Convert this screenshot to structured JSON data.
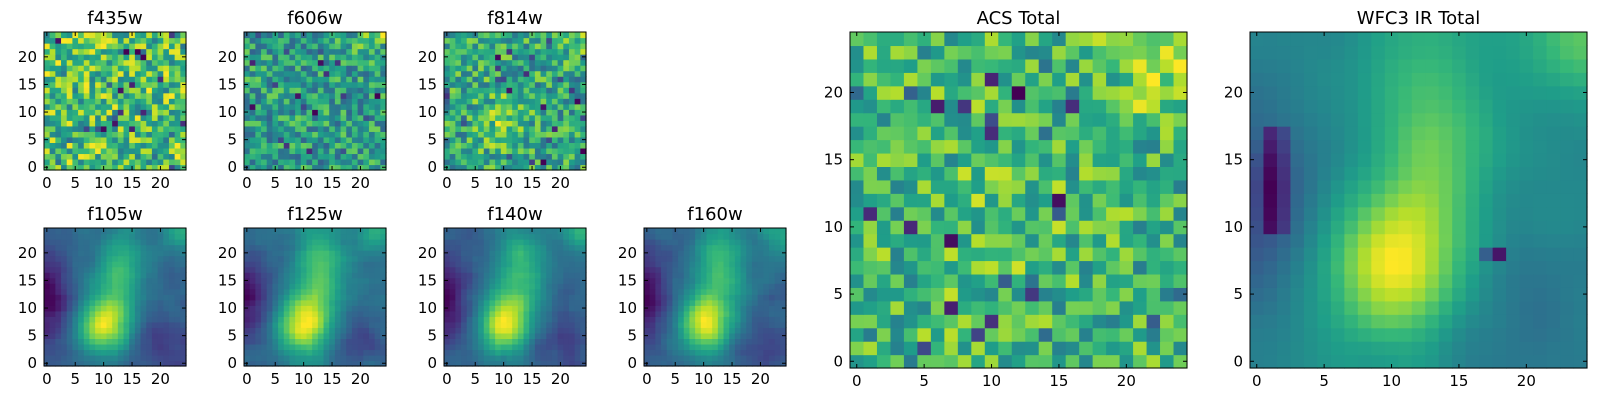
{
  "figure": {
    "layout": "mosaic",
    "colormap": "viridis",
    "colors": {
      "colormap_stops": [
        "#440154",
        "#482878",
        "#3e4989",
        "#31688e",
        "#26828e",
        "#1f9e89",
        "#35b779",
        "#6ece58",
        "#b5de2b",
        "#fde725"
      ]
    }
  },
  "chart_data": [
    {
      "type": "heatmap",
      "title": "f435w",
      "xlabel": "",
      "ylabel": "",
      "xlim": [
        -0.5,
        24.5
      ],
      "ylim": [
        -0.5,
        24.5
      ],
      "xticks": [
        0,
        5,
        10,
        15,
        20
      ],
      "yticks": [
        0,
        5,
        10,
        15,
        20
      ],
      "xtick_labels": [
        "0",
        "5",
        "10",
        "15",
        "20"
      ],
      "ytick_labels": [
        "0",
        "5",
        "10",
        "15",
        "20"
      ],
      "grid": false,
      "legend": "none",
      "pattern": "noise",
      "seed": 11
    },
    {
      "type": "heatmap",
      "title": "f606w",
      "xlabel": "",
      "ylabel": "",
      "xlim": [
        -0.5,
        24.5
      ],
      "ylim": [
        -0.5,
        24.5
      ],
      "xticks": [
        0,
        5,
        10,
        15,
        20
      ],
      "yticks": [
        0,
        5,
        10,
        15,
        20
      ],
      "xtick_labels": [
        "0",
        "5",
        "10",
        "15",
        "20"
      ],
      "ytick_labels": [
        "0",
        "5",
        "10",
        "15",
        "20"
      ],
      "grid": false,
      "legend": "none",
      "pattern": "noise-corner",
      "seed": 23
    },
    {
      "type": "heatmap",
      "title": "f814w",
      "xlabel": "",
      "ylabel": "",
      "xlim": [
        -0.5,
        24.5
      ],
      "ylim": [
        -0.5,
        24.5
      ],
      "xticks": [
        0,
        5,
        10,
        15,
        20
      ],
      "yticks": [
        0,
        5,
        10,
        15,
        20
      ],
      "xtick_labels": [
        "0",
        "5",
        "10",
        "15",
        "20"
      ],
      "ytick_labels": [
        "0",
        "5",
        "10",
        "15",
        "20"
      ],
      "grid": false,
      "legend": "none",
      "pattern": "noise-blob",
      "seed": 37
    },
    {
      "type": "heatmap",
      "title": "f105w",
      "xlabel": "",
      "ylabel": "",
      "xlim": [
        -0.5,
        24.5
      ],
      "ylim": [
        -0.5,
        24.5
      ],
      "xticks": [
        0,
        5,
        10,
        15,
        20
      ],
      "yticks": [
        0,
        5,
        10,
        15,
        20
      ],
      "xtick_labels": [
        "0",
        "5",
        "10",
        "15",
        "20"
      ],
      "ytick_labels": [
        "0",
        "5",
        "10",
        "15",
        "20"
      ],
      "grid": false,
      "legend": "none",
      "pattern": "smooth-blob",
      "seed": 41
    },
    {
      "type": "heatmap",
      "title": "f125w",
      "xlabel": "",
      "ylabel": "",
      "xlim": [
        -0.5,
        24.5
      ],
      "ylim": [
        -0.5,
        24.5
      ],
      "xticks": [
        0,
        5,
        10,
        15,
        20
      ],
      "yticks": [
        0,
        5,
        10,
        15,
        20
      ],
      "xtick_labels": [
        "0",
        "5",
        "10",
        "15",
        "20"
      ],
      "ytick_labels": [
        "0",
        "5",
        "10",
        "15",
        "20"
      ],
      "grid": false,
      "legend": "none",
      "pattern": "smooth-blob",
      "seed": 53
    },
    {
      "type": "heatmap",
      "title": "f140w",
      "xlabel": "",
      "ylabel": "",
      "xlim": [
        -0.5,
        24.5
      ],
      "ylim": [
        -0.5,
        24.5
      ],
      "xticks": [
        0,
        5,
        10,
        15,
        20
      ],
      "yticks": [
        0,
        5,
        10,
        15,
        20
      ],
      "xtick_labels": [
        "0",
        "5",
        "10",
        "15",
        "20"
      ],
      "ytick_labels": [
        "0",
        "5",
        "10",
        "15",
        "20"
      ],
      "grid": false,
      "legend": "none",
      "pattern": "smooth-blob",
      "seed": 67
    },
    {
      "type": "heatmap",
      "title": "f160w",
      "xlabel": "",
      "ylabel": "",
      "xlim": [
        -0.5,
        24.5
      ],
      "ylim": [
        -0.5,
        24.5
      ],
      "xticks": [
        0,
        5,
        10,
        15,
        20
      ],
      "yticks": [
        0,
        5,
        10,
        15,
        20
      ],
      "xtick_labels": [
        "0",
        "5",
        "10",
        "15",
        "20"
      ],
      "ytick_labels": [
        "0",
        "5",
        "10",
        "15",
        "20"
      ],
      "grid": false,
      "legend": "none",
      "pattern": "smooth-blob",
      "seed": 79
    },
    {
      "type": "heatmap",
      "title": "ACS Total",
      "xlabel": "",
      "ylabel": "",
      "xlim": [
        -0.5,
        24.5
      ],
      "ylim": [
        -0.5,
        24.5
      ],
      "xticks": [
        0,
        5,
        10,
        15,
        20
      ],
      "yticks": [
        0,
        5,
        10,
        15,
        20
      ],
      "xtick_labels": [
        "0",
        "5",
        "10",
        "15",
        "20"
      ],
      "ytick_labels": [
        "0",
        "5",
        "10",
        "15",
        "20"
      ],
      "grid": false,
      "legend": "none",
      "pattern": "noise-bright",
      "seed": 97
    },
    {
      "type": "heatmap",
      "title": "WFC3 IR Total",
      "xlabel": "",
      "ylabel": "",
      "xlim": [
        -0.5,
        24.5
      ],
      "ylim": [
        -0.5,
        24.5
      ],
      "xticks": [
        0,
        5,
        10,
        15,
        20
      ],
      "yticks": [
        0,
        5,
        10,
        15,
        20
      ],
      "xtick_labels": [
        "0",
        "5",
        "10",
        "15",
        "20"
      ],
      "ytick_labels": [
        "0",
        "5",
        "10",
        "15",
        "20"
      ],
      "grid": false,
      "legend": "none",
      "pattern": "smooth-blob-large",
      "seed": 101
    }
  ]
}
